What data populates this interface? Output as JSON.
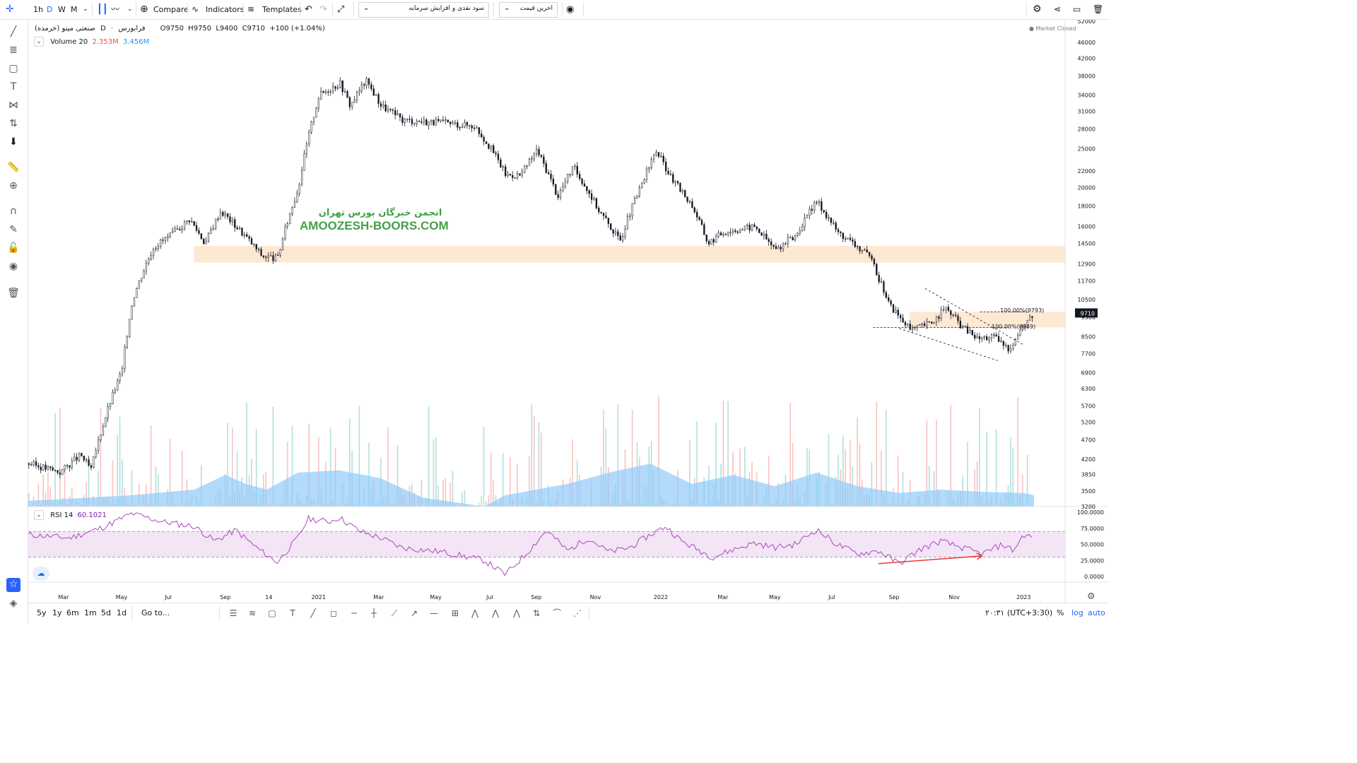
{
  "toolbar": {
    "intervals": [
      "1h",
      "D",
      "W",
      "M"
    ],
    "selected_interval": "D",
    "compare_label": "Compare",
    "indicators_label": "Indicators",
    "templates_label": "Templates",
    "dropdown1": "سود نقدی و افزایش سرمایه",
    "dropdown2": "اخرین قیمت"
  },
  "legend": {
    "symbol": "صنعتی مینو (خرمده)",
    "exchange": "فرابورس",
    "interval": "D",
    "o_label": "O",
    "o": "9750",
    "h_label": "H",
    "h": "9750",
    "l_label": "L",
    "l": "9400",
    "c_label": "C",
    "c": "9710",
    "change": "+100 (+1.04%)",
    "volume_label": "Volume 20",
    "volume_v1": "2.353M",
    "volume_v2": "3.456M",
    "market_status": "Market Closed"
  },
  "watermark": {
    "line1": "انجمن خبرگان بورس تهران",
    "line2": "AMOOZESH-BOORS.COM"
  },
  "annotations": {
    "fib_upper": "100.00%(9793)",
    "fib_lower": "100.00%(8949)"
  },
  "price_axis": {
    "ticks": [
      "52000",
      "46000",
      "42000",
      "38000",
      "34000",
      "31000",
      "28000",
      "25000",
      "22000",
      "20000",
      "18000",
      "16000",
      "14500",
      "12900",
      "11700",
      "10500",
      "9500",
      "8500",
      "7700",
      "6900",
      "6300",
      "5700",
      "5200",
      "4700",
      "4200",
      "3850",
      "3500",
      "3200"
    ],
    "last_price": "9710",
    "log_scale": true
  },
  "rsi": {
    "label": "RSI 14",
    "value": "60.1021",
    "ticks": [
      "100.0000",
      "75.0000",
      "50.0000",
      "25.0000",
      "0.0000"
    ]
  },
  "time_axis": [
    "Mar",
    "May",
    "Jul",
    "Sep",
    "14",
    "2021",
    "Mar",
    "May",
    "Jul",
    "Sep",
    "Nov",
    "2022",
    "Mar",
    "May",
    "Jul",
    "Sep",
    "Nov",
    "2023"
  ],
  "bottom": {
    "ranges": [
      "5y",
      "1y",
      "6m",
      "1m",
      "5d",
      "1d"
    ],
    "goto_label": "Go to...",
    "clock": "۲۰:۳۱ (UTC+3:30)",
    "percent_label": "%",
    "log_label": "log",
    "auto_label": "auto"
  },
  "colors": {
    "up": "#26a69a",
    "down": "#ef5350",
    "candle": "#131722",
    "zone": "#fde5cc",
    "rsi_line": "#ab47bc",
    "rsi_band": "#f3e5f5",
    "volume_ma": "#90caf9",
    "accent": "#2962ff",
    "watermark": "#43a047"
  },
  "chart_data": {
    "type": "candlestick",
    "price_path": [
      {
        "x": 0.0,
        "y": 4100
      },
      {
        "x": 0.03,
        "y": 3900
      },
      {
        "x": 0.05,
        "y": 4300
      },
      {
        "x": 0.06,
        "y": 3950
      },
      {
        "x": 0.09,
        "y": 7000
      },
      {
        "x": 0.1,
        "y": 10500
      },
      {
        "x": 0.12,
        "y": 14200
      },
      {
        "x": 0.14,
        "y": 15400
      },
      {
        "x": 0.155,
        "y": 16700
      },
      {
        "x": 0.17,
        "y": 14500
      },
      {
        "x": 0.185,
        "y": 17500
      },
      {
        "x": 0.21,
        "y": 15000
      },
      {
        "x": 0.225,
        "y": 13500
      },
      {
        "x": 0.24,
        "y": 13300
      },
      {
        "x": 0.26,
        "y": 20000
      },
      {
        "x": 0.28,
        "y": 34000
      },
      {
        "x": 0.3,
        "y": 36500
      },
      {
        "x": 0.31,
        "y": 32000
      },
      {
        "x": 0.325,
        "y": 37000
      },
      {
        "x": 0.34,
        "y": 32000
      },
      {
        "x": 0.36,
        "y": 29500
      },
      {
        "x": 0.4,
        "y": 29000
      },
      {
        "x": 0.43,
        "y": 28500
      },
      {
        "x": 0.45,
        "y": 24000
      },
      {
        "x": 0.46,
        "y": 21500
      },
      {
        "x": 0.475,
        "y": 21500
      },
      {
        "x": 0.49,
        "y": 24800
      },
      {
        "x": 0.51,
        "y": 19000
      },
      {
        "x": 0.525,
        "y": 22500
      },
      {
        "x": 0.55,
        "y": 17500
      },
      {
        "x": 0.57,
        "y": 14700
      },
      {
        "x": 0.59,
        "y": 20000
      },
      {
        "x": 0.605,
        "y": 24700
      },
      {
        "x": 0.62,
        "y": 21000
      },
      {
        "x": 0.64,
        "y": 18000
      },
      {
        "x": 0.655,
        "y": 14500
      },
      {
        "x": 0.67,
        "y": 15500
      },
      {
        "x": 0.7,
        "y": 16000
      },
      {
        "x": 0.72,
        "y": 14000
      },
      {
        "x": 0.74,
        "y": 15200
      },
      {
        "x": 0.76,
        "y": 18500
      },
      {
        "x": 0.78,
        "y": 15500
      },
      {
        "x": 0.81,
        "y": 13500
      },
      {
        "x": 0.83,
        "y": 10200
      },
      {
        "x": 0.85,
        "y": 8800
      },
      {
        "x": 0.87,
        "y": 9200
      },
      {
        "x": 0.885,
        "y": 10000
      },
      {
        "x": 0.9,
        "y": 9000
      },
      {
        "x": 0.915,
        "y": 8400
      },
      {
        "x": 0.93,
        "y": 8500
      },
      {
        "x": 0.945,
        "y": 7900
      },
      {
        "x": 0.96,
        "y": 9100
      },
      {
        "x": 0.97,
        "y": 9710
      }
    ],
    "zones": [
      {
        "from": 0.16,
        "to": 1.0,
        "low": 13000,
        "high": 14300
      },
      {
        "from": 0.85,
        "to": 1.0,
        "low": 8949,
        "high": 9793
      }
    ],
    "rsi_path": [
      {
        "x": 0.0,
        "y": 65
      },
      {
        "x": 0.04,
        "y": 60
      },
      {
        "x": 0.07,
        "y": 75
      },
      {
        "x": 0.1,
        "y": 98
      },
      {
        "x": 0.13,
        "y": 85
      },
      {
        "x": 0.16,
        "y": 78
      },
      {
        "x": 0.18,
        "y": 55
      },
      {
        "x": 0.2,
        "y": 72
      },
      {
        "x": 0.22,
        "y": 45
      },
      {
        "x": 0.24,
        "y": 22
      },
      {
        "x": 0.26,
        "y": 60
      },
      {
        "x": 0.27,
        "y": 90
      },
      {
        "x": 0.29,
        "y": 85
      },
      {
        "x": 0.3,
        "y": 92
      },
      {
        "x": 0.32,
        "y": 70
      },
      {
        "x": 0.34,
        "y": 60
      },
      {
        "x": 0.36,
        "y": 45
      },
      {
        "x": 0.4,
        "y": 38
      },
      {
        "x": 0.44,
        "y": 25
      },
      {
        "x": 0.46,
        "y": 3
      },
      {
        "x": 0.48,
        "y": 35
      },
      {
        "x": 0.5,
        "y": 72
      },
      {
        "x": 0.52,
        "y": 40
      },
      {
        "x": 0.54,
        "y": 60
      },
      {
        "x": 0.56,
        "y": 38
      },
      {
        "x": 0.58,
        "y": 45
      },
      {
        "x": 0.6,
        "y": 65
      },
      {
        "x": 0.615,
        "y": 78
      },
      {
        "x": 0.63,
        "y": 55
      },
      {
        "x": 0.66,
        "y": 30
      },
      {
        "x": 0.68,
        "y": 42
      },
      {
        "x": 0.7,
        "y": 52
      },
      {
        "x": 0.72,
        "y": 45
      },
      {
        "x": 0.74,
        "y": 50
      },
      {
        "x": 0.76,
        "y": 73
      },
      {
        "x": 0.78,
        "y": 50
      },
      {
        "x": 0.8,
        "y": 35
      },
      {
        "x": 0.82,
        "y": 40
      },
      {
        "x": 0.84,
        "y": 20
      },
      {
        "x": 0.86,
        "y": 42
      },
      {
        "x": 0.88,
        "y": 55
      },
      {
        "x": 0.9,
        "y": 45
      },
      {
        "x": 0.92,
        "y": 35
      },
      {
        "x": 0.94,
        "y": 50
      },
      {
        "x": 0.95,
        "y": 40
      },
      {
        "x": 0.96,
        "y": 65
      },
      {
        "x": 0.97,
        "y": 60
      }
    ],
    "volume_ma": [
      {
        "x": 0.0,
        "y": 0.05
      },
      {
        "x": 0.1,
        "y": 0.1
      },
      {
        "x": 0.16,
        "y": 0.15
      },
      {
        "x": 0.19,
        "y": 0.28
      },
      {
        "x": 0.21,
        "y": 0.2
      },
      {
        "x": 0.23,
        "y": 0.15
      },
      {
        "x": 0.26,
        "y": 0.3
      },
      {
        "x": 0.3,
        "y": 0.32
      },
      {
        "x": 0.34,
        "y": 0.25
      },
      {
        "x": 0.38,
        "y": 0.08
      },
      {
        "x": 0.44,
        "y": 0.0
      },
      {
        "x": 0.46,
        "y": 0.1
      },
      {
        "x": 0.52,
        "y": 0.2
      },
      {
        "x": 0.56,
        "y": 0.3
      },
      {
        "x": 0.6,
        "y": 0.38
      },
      {
        "x": 0.64,
        "y": 0.2
      },
      {
        "x": 0.68,
        "y": 0.28
      },
      {
        "x": 0.72,
        "y": 0.18
      },
      {
        "x": 0.76,
        "y": 0.3
      },
      {
        "x": 0.8,
        "y": 0.18
      },
      {
        "x": 0.84,
        "y": 0.12
      },
      {
        "x": 0.88,
        "y": 0.15
      },
      {
        "x": 0.92,
        "y": 0.13
      },
      {
        "x": 0.96,
        "y": 0.12
      },
      {
        "x": 0.97,
        "y": 0.1
      }
    ]
  }
}
